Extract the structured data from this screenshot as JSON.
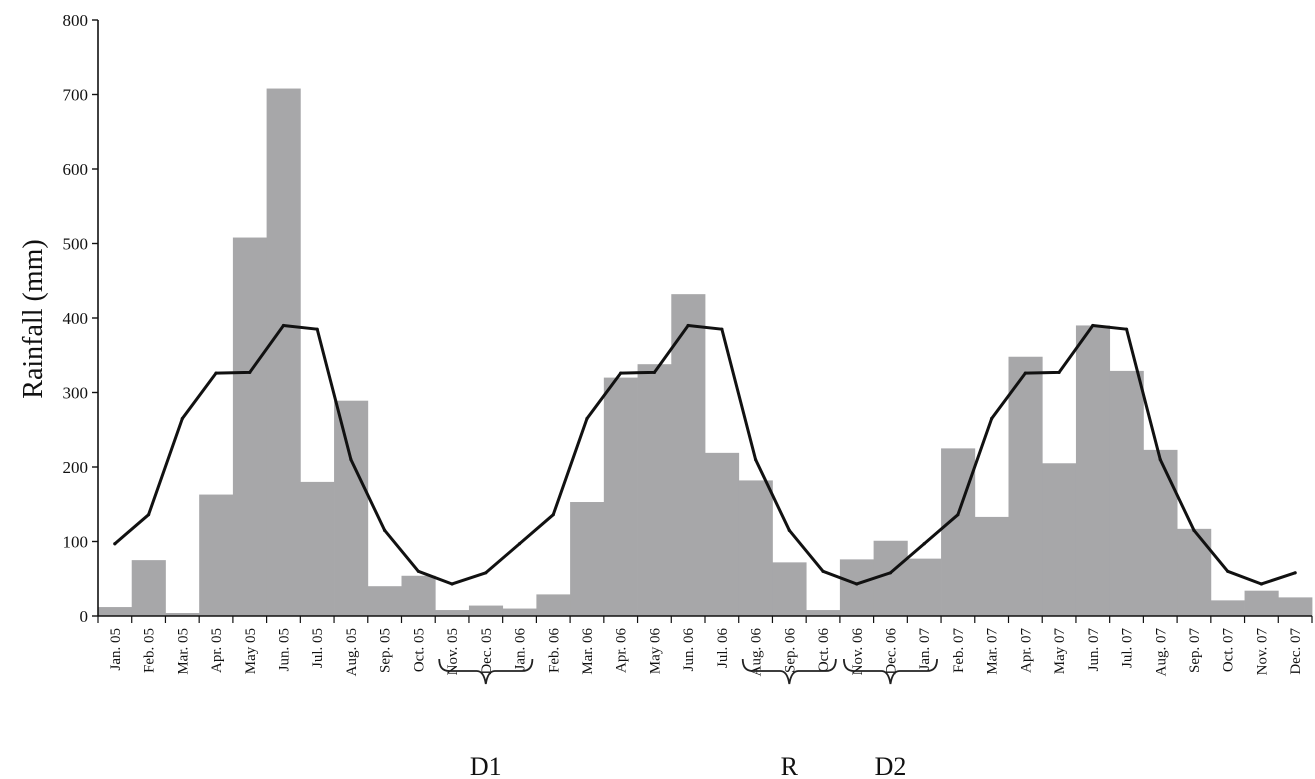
{
  "chart_data": {
    "type": "bar",
    "ylabel": "Rainfall (mm)",
    "xlabel": "",
    "ylim": [
      0,
      800
    ],
    "yticks": [
      0,
      100,
      200,
      300,
      400,
      500,
      600,
      700,
      800
    ],
    "grid": false,
    "categories": [
      "Jan. 05",
      "Feb. 05",
      "Mar. 05",
      "Apr. 05",
      "May 05",
      "Jun. 05",
      "Jul. 05",
      "Aug. 05",
      "Sep. 05",
      "Oct. 05",
      "Nov. 05",
      "Dec. 05",
      "Jan. 06",
      "Feb. 06",
      "Mar. 06",
      "Apr. 06",
      "May 06",
      "Jun. 06",
      "Jul. 06",
      "Aug. 06",
      "Sep. 06",
      "Oct. 06",
      "Nov. 06",
      "Dec. 06",
      "Jan. 07",
      "Feb. 07",
      "Mar. 07",
      "Apr. 07",
      "May 07",
      "Jun. 07",
      "Jul. 07",
      "Aug. 07",
      "Sep. 07",
      "Oct. 07",
      "Nov. 07",
      "Dec. 07"
    ],
    "series": [
      {
        "kind": "bar",
        "color": "#a7a7a9",
        "values": [
          12,
          75,
          4,
          163,
          508,
          708,
          180,
          289,
          40,
          54,
          8,
          14,
          10,
          29,
          153,
          320,
          338,
          432,
          219,
          182,
          72,
          8,
          76,
          101,
          77,
          225,
          133,
          348,
          205,
          390,
          329,
          223,
          117,
          21,
          34,
          25
        ]
      },
      {
        "kind": "line",
        "color": "#111111",
        "values": [
          97,
          136,
          265,
          326,
          327,
          390,
          385,
          210,
          115,
          60,
          43,
          58,
          97,
          136,
          265,
          326,
          327,
          390,
          385,
          210,
          115,
          60,
          43,
          58,
          97,
          136,
          265,
          326,
          327,
          390,
          385,
          210,
          115,
          60,
          43,
          58
        ]
      }
    ],
    "annotations": [
      {
        "label": "D1",
        "start": "Nov. 05",
        "end": "Jan. 06"
      },
      {
        "label": "R",
        "start": "Aug. 06",
        "end": "Oct. 06"
      },
      {
        "label": "D2",
        "start": "Nov. 06",
        "end": "Jan. 07"
      }
    ]
  }
}
